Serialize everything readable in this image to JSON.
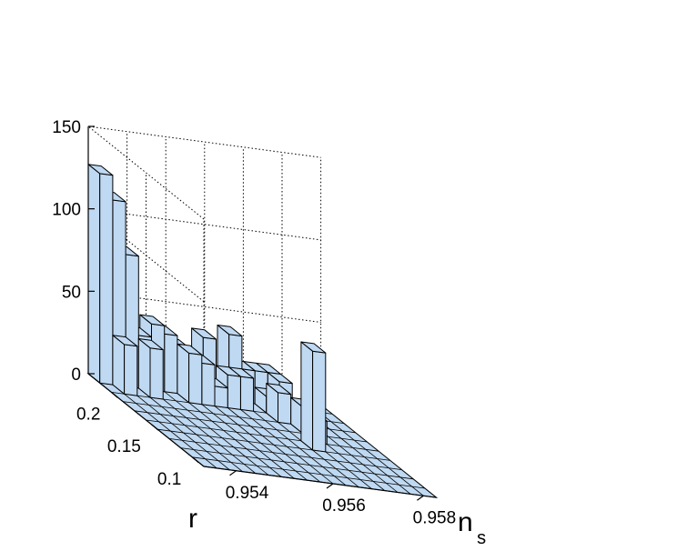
{
  "chart_data": {
    "type": "bar3d",
    "title": "",
    "xlabel": "n",
    "xlabel_subscript": "s",
    "ylabel": "r",
    "zlabel": "",
    "x_ticks": [
      "0.954",
      "0.956",
      "0.958"
    ],
    "y_ticks": [
      "0.2",
      "0.15",
      "0.1"
    ],
    "z_ticks": [
      "0",
      "50",
      "100",
      "150"
    ],
    "zlim": [
      0,
      150
    ],
    "grid": true,
    "bar_color": "#bfd9f2",
    "bars": [
      {
        "i": 0,
        "j": 9,
        "value": 127
      },
      {
        "i": 1,
        "j": 9,
        "value": 112
      },
      {
        "i": 2,
        "j": 9,
        "value": 80
      },
      {
        "i": 1,
        "j": 8,
        "value": 30
      },
      {
        "i": 3,
        "j": 9,
        "value": 32
      },
      {
        "i": 4,
        "j": 9,
        "value": 40
      },
      {
        "i": 5,
        "j": 9,
        "value": 35
      },
      {
        "i": 3,
        "j": 8,
        "value": 30
      },
      {
        "i": 6,
        "j": 9,
        "value": 28
      },
      {
        "i": 7,
        "j": 9,
        "value": 22
      },
      {
        "i": 7,
        "j": 8,
        "value": 25
      },
      {
        "i": 6,
        "j": 8,
        "value": 30
      },
      {
        "i": 8,
        "j": 8,
        "value": 12
      },
      {
        "i": 8,
        "j": 9,
        "value": 36
      },
      {
        "i": 9,
        "j": 9,
        "value": 10
      },
      {
        "i": 9,
        "j": 8,
        "value": 20
      },
      {
        "i": 10,
        "j": 9,
        "value": 40
      },
      {
        "i": 10,
        "j": 8,
        "value": 20
      },
      {
        "i": 11,
        "j": 9,
        "value": 20
      },
      {
        "i": 12,
        "j": 9,
        "value": 20
      },
      {
        "i": 12,
        "j": 8,
        "value": 10
      },
      {
        "i": 13,
        "j": 9,
        "value": 20
      },
      {
        "i": 13,
        "j": 8,
        "value": 20
      },
      {
        "i": 12,
        "j": 7,
        "value": 18
      },
      {
        "i": 13,
        "j": 6,
        "value": 16
      },
      {
        "i": 13,
        "j": 5,
        "value": 14
      },
      {
        "i": 12,
        "j": 4,
        "value": 60
      }
    ]
  }
}
